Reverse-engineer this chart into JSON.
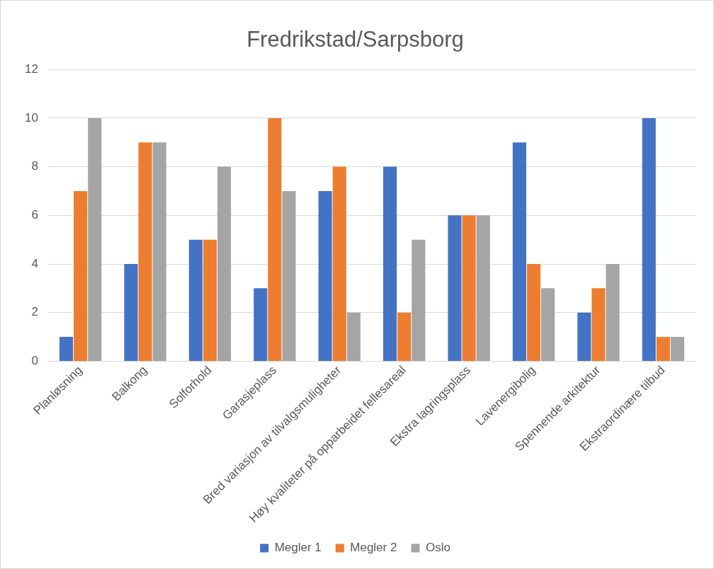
{
  "chart_data": {
    "type": "bar",
    "title": "Fredrikstad/Sarpsborg",
    "categories": [
      "Planløsning",
      "Balkong",
      "Solforhold",
      "Garasjeplass",
      "Bred variasjon av tilvalgsmuligheter",
      "Høy kvaliteter på opparbeidet fellesareal",
      "Ekstra lagringsplass",
      "Lavenergibolig",
      "Spennende arkitektur",
      "Ekstraordinære tilbud"
    ],
    "series": [
      {
        "name": "Megler 1",
        "color": "#4472c4",
        "values": [
          1,
          4,
          5,
          3,
          7,
          8,
          6,
          9,
          2,
          10
        ]
      },
      {
        "name": "Megler 2",
        "color": "#ed7d31",
        "values": [
          7,
          9,
          5,
          10,
          8,
          2,
          6,
          4,
          3,
          1
        ]
      },
      {
        "name": "Oslo",
        "color": "#a5a5a5",
        "values": [
          10,
          9,
          8,
          7,
          2,
          5,
          6,
          3,
          4,
          1
        ]
      }
    ],
    "ylim": [
      0,
      12
    ],
    "yticks": [
      0,
      2,
      4,
      6,
      8,
      10,
      12
    ],
    "grid": "y",
    "legend": "bottom"
  }
}
